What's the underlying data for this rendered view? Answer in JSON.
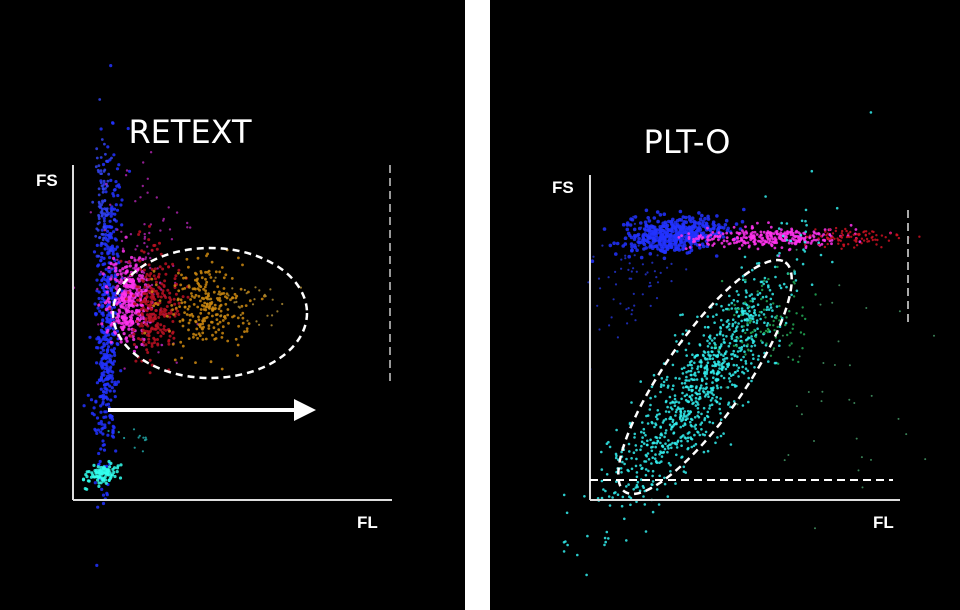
{
  "panels": [
    {
      "title": "RETEXT",
      "y_axis_label": "FS",
      "x_axis_label": "FL"
    },
    {
      "title": "PLT-O",
      "y_axis_label": "FS",
      "x_axis_label": "FL"
    }
  ]
}
